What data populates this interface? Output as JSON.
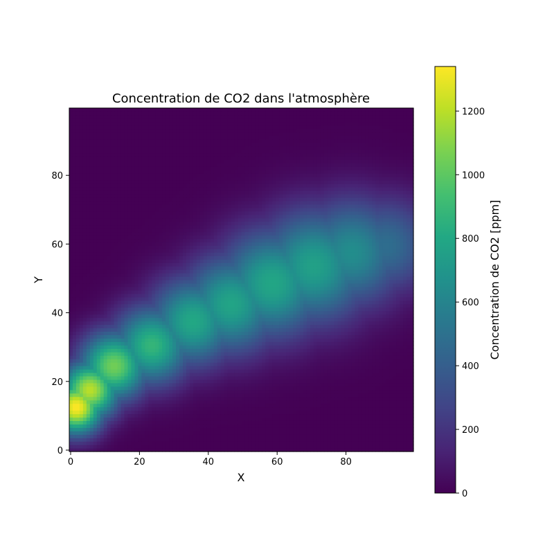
{
  "chart_data": {
    "type": "heatmap",
    "title": "Concentration de CO2 dans l'atmosphère",
    "xlabel": "X",
    "ylabel": "Y",
    "xlim": [
      0,
      100
    ],
    "ylim": [
      0,
      100
    ],
    "x_ticks": [
      0,
      20,
      40,
      60,
      80
    ],
    "y_ticks": [
      0,
      20,
      40,
      60,
      80
    ],
    "grid": false,
    "colormap": "viridis",
    "colorbar": {
      "label": "Concentration de CO2 [ppm]",
      "range": [
        0,
        1340
      ],
      "ticks": [
        0,
        200,
        400,
        600,
        800,
        1000,
        1200
      ]
    },
    "plume": {
      "description_of_values": "Gaussian puffs along the plume axis (x, y, peak ppm, width)",
      "puffs": [
        {
          "x": 2,
          "y": 13,
          "peak": 1340,
          "sigma": 5.5
        },
        {
          "x": 6,
          "y": 18,
          "peak": 1200,
          "sigma": 6
        },
        {
          "x": 13,
          "y": 25,
          "peak": 1050,
          "sigma": 7
        },
        {
          "x": 24,
          "y": 31,
          "peak": 880,
          "sigma": 8
        },
        {
          "x": 36,
          "y": 38,
          "peak": 800,
          "sigma": 9
        },
        {
          "x": 47,
          "y": 43,
          "peak": 780,
          "sigma": 10
        },
        {
          "x": 59,
          "y": 49,
          "peak": 790,
          "sigma": 11
        },
        {
          "x": 71,
          "y": 54,
          "peak": 760,
          "sigma": 11.5
        },
        {
          "x": 82,
          "y": 58,
          "peak": 650,
          "sigma": 11
        },
        {
          "x": 92,
          "y": 60,
          "peak": 480,
          "sigma": 10
        }
      ]
    }
  }
}
